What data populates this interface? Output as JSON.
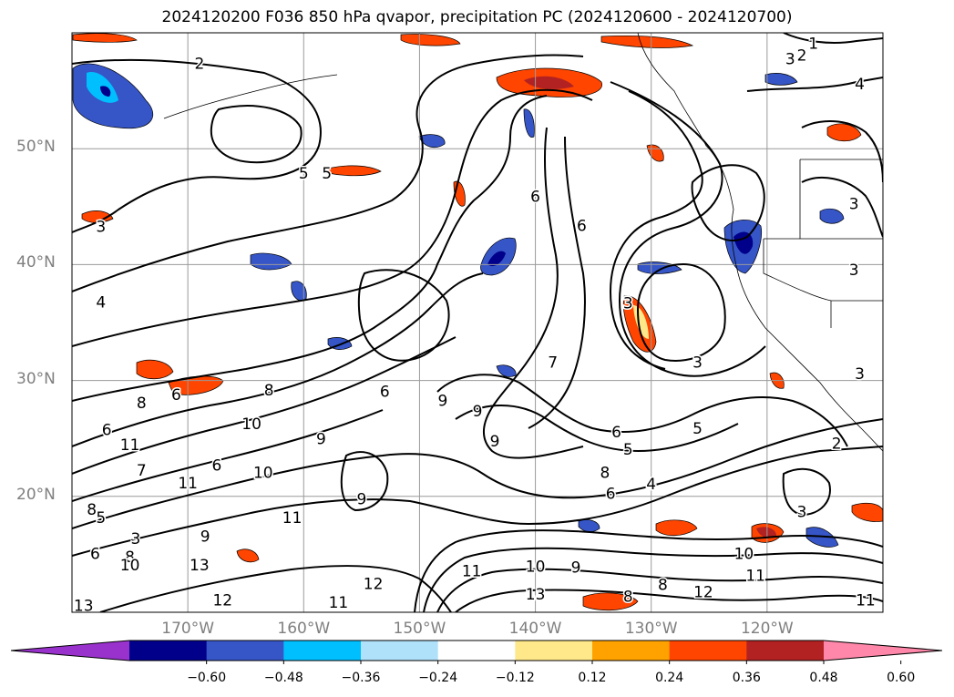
{
  "title": "2024120200 F036 850 hPa qvapor, precipitation PC (2024120600 - 2024120700)",
  "map": {
    "lon_range": [
      -180,
      -110
    ],
    "lat_range": [
      10,
      60
    ],
    "lat_labels": [
      {
        "lat": 50,
        "text": "50°N"
      },
      {
        "lat": 40,
        "text": "40°N"
      },
      {
        "lat": 30,
        "text": "30°N"
      },
      {
        "lat": 20,
        "text": "20°N"
      }
    ],
    "lon_labels": [
      {
        "lon": -170,
        "text": "170°W"
      },
      {
        "lon": -160,
        "text": "160°W"
      },
      {
        "lon": -150,
        "text": "150°W"
      },
      {
        "lon": -140,
        "text": "140°W"
      },
      {
        "lon": -130,
        "text": "130°W"
      },
      {
        "lon": -120,
        "text": "120°W"
      }
    ],
    "contour_labels": [
      {
        "text": "1",
        "lon": -116,
        "lat": 59
      },
      {
        "text": "2",
        "lon": -117,
        "lat": 58
      },
      {
        "text": "3",
        "lon": -118,
        "lat": 57.7
      },
      {
        "text": "4",
        "lon": -112,
        "lat": 55.5
      },
      {
        "text": "2",
        "lon": -169,
        "lat": 57.3
      },
      {
        "text": "5",
        "lon": -160,
        "lat": 47.8
      },
      {
        "text": "5",
        "lon": -158,
        "lat": 47.8
      },
      {
        "text": "3",
        "lon": -177.5,
        "lat": 43.2
      },
      {
        "text": "4",
        "lon": -177.5,
        "lat": 36.7
      },
      {
        "text": "6",
        "lon": -140,
        "lat": 45.8
      },
      {
        "text": "6",
        "lon": -136,
        "lat": 43.3
      },
      {
        "text": "3",
        "lon": -132,
        "lat": 36.6
      },
      {
        "text": "3",
        "lon": -126,
        "lat": 31.5
      },
      {
        "text": "3",
        "lon": -112.5,
        "lat": 45.2
      },
      {
        "text": "3",
        "lon": -112.5,
        "lat": 39.5
      },
      {
        "text": "3",
        "lon": -112,
        "lat": 30.5
      },
      {
        "text": "5",
        "lon": -126,
        "lat": 25.8
      },
      {
        "text": "5",
        "lon": -132,
        "lat": 24
      },
      {
        "text": "4",
        "lon": -130,
        "lat": 21
      },
      {
        "text": "6",
        "lon": -133.5,
        "lat": 20.2
      },
      {
        "text": "8",
        "lon": -134,
        "lat": 22
      },
      {
        "text": "6",
        "lon": -133,
        "lat": 25.5
      },
      {
        "text": "9",
        "lon": -143.5,
        "lat": 24.7
      },
      {
        "text": "9",
        "lon": -148,
        "lat": 28.2
      },
      {
        "text": "9",
        "lon": -145,
        "lat": 27.3
      },
      {
        "text": "8",
        "lon": -174,
        "lat": 28
      },
      {
        "text": "8",
        "lon": -163,
        "lat": 29.1
      },
      {
        "text": "6",
        "lon": -177,
        "lat": 25.7
      },
      {
        "text": "6",
        "lon": -171,
        "lat": 28.7
      },
      {
        "text": "10",
        "lon": -164.5,
        "lat": 26.2
      },
      {
        "text": "10",
        "lon": -163.5,
        "lat": 22
      },
      {
        "text": "11",
        "lon": -175,
        "lat": 24.4
      },
      {
        "text": "7",
        "lon": -174,
        "lat": 22.2
      },
      {
        "text": "6",
        "lon": -167.5,
        "lat": 22.6
      },
      {
        "text": "11",
        "lon": -170,
        "lat": 21.1
      },
      {
        "text": "9",
        "lon": -158.5,
        "lat": 24.9
      },
      {
        "text": "9",
        "lon": -155,
        "lat": 19.7
      },
      {
        "text": "8",
        "lon": -178.3,
        "lat": 18.8
      },
      {
        "text": "5",
        "lon": -177.5,
        "lat": 18.1
      },
      {
        "text": "3",
        "lon": -174.5,
        "lat": 16.3
      },
      {
        "text": "6",
        "lon": -178,
        "lat": 15
      },
      {
        "text": "8",
        "lon": -175,
        "lat": 14.7
      },
      {
        "text": "10",
        "lon": -175,
        "lat": 14
      },
      {
        "text": "9",
        "lon": -168.5,
        "lat": 16.5
      },
      {
        "text": "13",
        "lon": -169,
        "lat": 14
      },
      {
        "text": "11",
        "lon": -161,
        "lat": 18.1
      },
      {
        "text": "12",
        "lon": -154,
        "lat": 12.4
      },
      {
        "text": "12",
        "lon": -167,
        "lat": 11
      },
      {
        "text": "11",
        "lon": -157,
        "lat": 10.8
      },
      {
        "text": "13",
        "lon": -179,
        "lat": 10.5
      },
      {
        "text": "11",
        "lon": -145.5,
        "lat": 13.5
      },
      {
        "text": "10",
        "lon": -140,
        "lat": 13.9
      },
      {
        "text": "9",
        "lon": -136.5,
        "lat": 13.8
      },
      {
        "text": "13",
        "lon": -140,
        "lat": 11.5
      },
      {
        "text": "8",
        "lon": -132,
        "lat": 11.3
      },
      {
        "text": "8",
        "lon": -129,
        "lat": 12.3
      },
      {
        "text": "12",
        "lon": -125.5,
        "lat": 11.7
      },
      {
        "text": "10",
        "lon": -122,
        "lat": 15
      },
      {
        "text": "11",
        "lon": -121,
        "lat": 13.1
      },
      {
        "text": "3",
        "lon": -117,
        "lat": 18.6
      },
      {
        "text": "2",
        "lon": -114,
        "lat": 24.5
      },
      {
        "text": "11",
        "lon": -111.5,
        "lat": 11
      },
      {
        "text": "6",
        "lon": -153,
        "lat": 29
      },
      {
        "text": "7",
        "lon": -138.5,
        "lat": 31.5
      }
    ]
  },
  "colorbar": {
    "levels": [
      -0.6,
      -0.48,
      -0.36,
      -0.24,
      -0.12,
      0.12,
      0.24,
      0.36,
      0.48,
      0.6
    ],
    "tick_labels": [
      "−0.60",
      "−0.48",
      "−0.36",
      "−0.24",
      "−0.12",
      "0.12",
      "0.24",
      "0.36",
      "0.48",
      "0.60"
    ],
    "colors": {
      "under": "#9932cc",
      "bins": [
        "#00008b",
        "#3656c8",
        "#00bfff",
        "#afe1fa",
        "#ffffff",
        "#ffe88a",
        "#ffa200",
        "#ff4500",
        "#b22222"
      ],
      "over": "#ff88aa"
    }
  }
}
